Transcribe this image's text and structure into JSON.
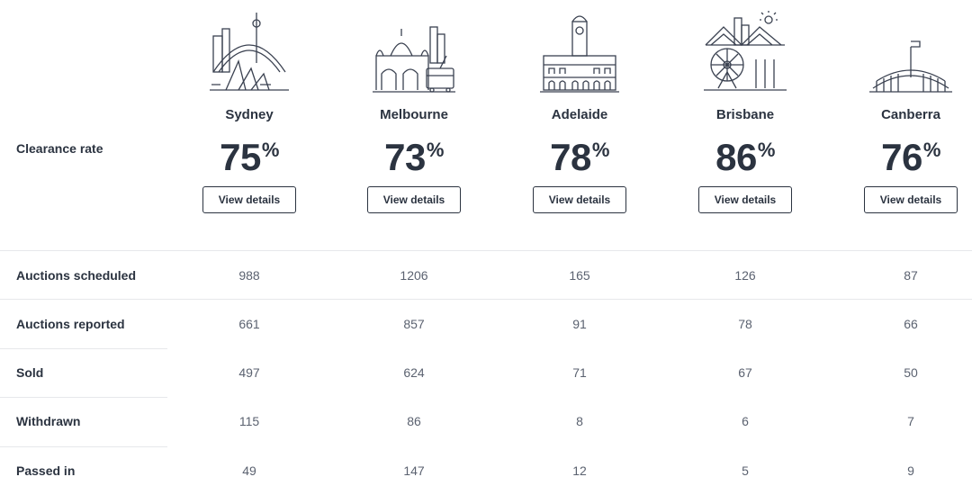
{
  "clearance_label": "Clearance rate",
  "button_label": "View details",
  "cities": [
    {
      "name": "Sydney",
      "rate": "75",
      "icon": "sydney-skyline-icon"
    },
    {
      "name": "Melbourne",
      "rate": "73",
      "icon": "melbourne-skyline-icon"
    },
    {
      "name": "Adelaide",
      "rate": "78",
      "icon": "adelaide-town-hall-icon"
    },
    {
      "name": "Brisbane",
      "rate": "86",
      "icon": "brisbane-bridge-icon"
    },
    {
      "name": "Canberra",
      "rate": "76",
      "icon": "canberra-parliament-icon"
    }
  ],
  "percent_symbol": "%",
  "rows": [
    {
      "label": "Auctions scheduled",
      "values": [
        "988",
        "1206",
        "165",
        "126",
        "87"
      ]
    },
    {
      "label": "Auctions reported",
      "values": [
        "661",
        "857",
        "91",
        "78",
        "66"
      ]
    },
    {
      "label": "Sold",
      "values": [
        "497",
        "624",
        "71",
        "67",
        "50"
      ]
    },
    {
      "label": "Withdrawn",
      "values": [
        "115",
        "86",
        "8",
        "6",
        "7"
      ]
    },
    {
      "label": "Passed in",
      "values": [
        "49",
        "147",
        "12",
        "5",
        "9"
      ]
    }
  ]
}
